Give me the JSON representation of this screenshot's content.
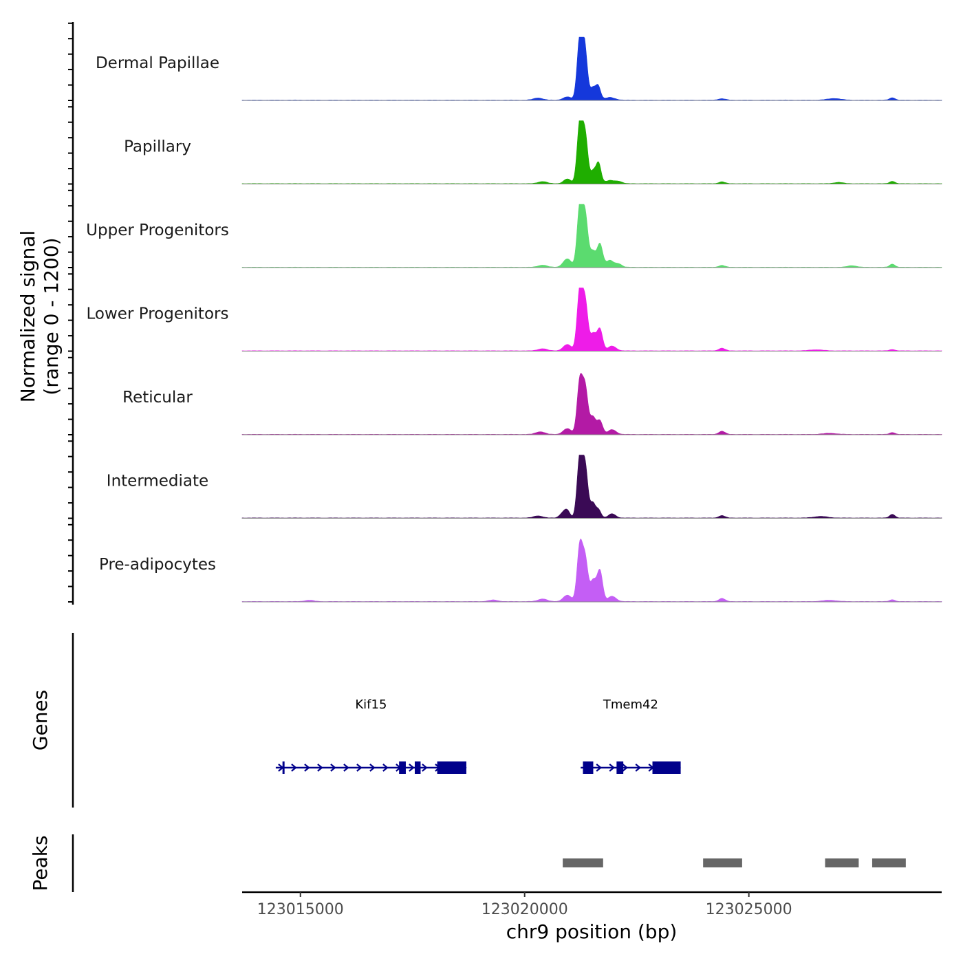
{
  "chart_data": {
    "type": "area",
    "title": "",
    "region": {
      "chromosome": "chr9",
      "start": 123013700,
      "end": 123029300
    },
    "xlabel": "chr9 position (bp)",
    "ylabel_line1": "Normalized signal",
    "ylabel_line2": "(range 0 - 1200)",
    "ylim": [
      0,
      1200
    ],
    "x_ticks": [
      {
        "value": 123015000,
        "label": "123015000"
      },
      {
        "value": 123020000,
        "label": "123020000"
      },
      {
        "value": 123025000,
        "label": "123025000"
      }
    ],
    "tracks": [
      {
        "name": "Dermal Papillae",
        "color": "#1538DB",
        "peaks": [
          {
            "x": 123021230,
            "y": 1150,
            "w": 60
          },
          {
            "x": 123021340,
            "y": 950,
            "w": 60
          },
          {
            "x": 123021520,
            "y": 220,
            "w": 60
          },
          {
            "x": 123021640,
            "y": 260,
            "w": 55
          },
          {
            "x": 123020950,
            "y": 60,
            "w": 90
          },
          {
            "x": 123020300,
            "y": 40,
            "w": 100
          },
          {
            "x": 123021900,
            "y": 50,
            "w": 110
          },
          {
            "x": 123024400,
            "y": 25,
            "w": 80
          },
          {
            "x": 123026900,
            "y": 30,
            "w": 140
          },
          {
            "x": 123028200,
            "y": 45,
            "w": 60
          }
        ]
      },
      {
        "name": "Papillary",
        "color": "#1FAE00",
        "peaks": [
          {
            "x": 123021230,
            "y": 1150,
            "w": 60
          },
          {
            "x": 123021350,
            "y": 900,
            "w": 60
          },
          {
            "x": 123021530,
            "y": 230,
            "w": 60
          },
          {
            "x": 123021650,
            "y": 380,
            "w": 55
          },
          {
            "x": 123020950,
            "y": 90,
            "w": 80
          },
          {
            "x": 123020400,
            "y": 40,
            "w": 100
          },
          {
            "x": 123021900,
            "y": 60,
            "w": 100
          },
          {
            "x": 123022100,
            "y": 40,
            "w": 80
          },
          {
            "x": 123024400,
            "y": 35,
            "w": 70
          },
          {
            "x": 123027000,
            "y": 25,
            "w": 100
          },
          {
            "x": 123028200,
            "y": 45,
            "w": 60
          }
        ]
      },
      {
        "name": "Upper Progenitors",
        "color": "#5BDB6F",
        "peaks": [
          {
            "x": 123021230,
            "y": 1150,
            "w": 60
          },
          {
            "x": 123021350,
            "y": 950,
            "w": 60
          },
          {
            "x": 123021520,
            "y": 300,
            "w": 70
          },
          {
            "x": 123021680,
            "y": 430,
            "w": 60
          },
          {
            "x": 123020950,
            "y": 160,
            "w": 90
          },
          {
            "x": 123021900,
            "y": 130,
            "w": 90
          },
          {
            "x": 123022100,
            "y": 60,
            "w": 70
          },
          {
            "x": 123020400,
            "y": 40,
            "w": 100
          },
          {
            "x": 123024400,
            "y": 35,
            "w": 70
          },
          {
            "x": 123027300,
            "y": 30,
            "w": 100
          },
          {
            "x": 123028200,
            "y": 60,
            "w": 60
          }
        ]
      },
      {
        "name": "Lower Progenitors",
        "color": "#EE1CE8",
        "peaks": [
          {
            "x": 123021230,
            "y": 1150,
            "w": 60
          },
          {
            "x": 123021350,
            "y": 900,
            "w": 60
          },
          {
            "x": 123021530,
            "y": 320,
            "w": 70
          },
          {
            "x": 123021680,
            "y": 400,
            "w": 60
          },
          {
            "x": 123020950,
            "y": 120,
            "w": 90
          },
          {
            "x": 123021950,
            "y": 90,
            "w": 90
          },
          {
            "x": 123020400,
            "y": 40,
            "w": 100
          },
          {
            "x": 123024400,
            "y": 50,
            "w": 70
          },
          {
            "x": 123026500,
            "y": 20,
            "w": 150
          },
          {
            "x": 123028200,
            "y": 25,
            "w": 60
          }
        ]
      },
      {
        "name": "Reticular",
        "color": "#B31AA5",
        "peaks": [
          {
            "x": 123021230,
            "y": 1000,
            "w": 60
          },
          {
            "x": 123021350,
            "y": 850,
            "w": 60
          },
          {
            "x": 123021520,
            "y": 330,
            "w": 70
          },
          {
            "x": 123021680,
            "y": 250,
            "w": 60
          },
          {
            "x": 123020950,
            "y": 110,
            "w": 90
          },
          {
            "x": 123021950,
            "y": 90,
            "w": 90
          },
          {
            "x": 123020350,
            "y": 50,
            "w": 100
          },
          {
            "x": 123024400,
            "y": 60,
            "w": 70
          },
          {
            "x": 123026800,
            "y": 20,
            "w": 150
          },
          {
            "x": 123028200,
            "y": 35,
            "w": 60
          }
        ]
      },
      {
        "name": "Intermediate",
        "color": "#3A0A55",
        "peaks": [
          {
            "x": 123021230,
            "y": 1150,
            "w": 60
          },
          {
            "x": 123021350,
            "y": 950,
            "w": 60
          },
          {
            "x": 123021520,
            "y": 280,
            "w": 60
          },
          {
            "x": 123021650,
            "y": 150,
            "w": 55
          },
          {
            "x": 123020850,
            "y": 90,
            "w": 70
          },
          {
            "x": 123020950,
            "y": 130,
            "w": 60
          },
          {
            "x": 123021950,
            "y": 80,
            "w": 80
          },
          {
            "x": 123020300,
            "y": 40,
            "w": 100
          },
          {
            "x": 123024400,
            "y": 45,
            "w": 70
          },
          {
            "x": 123026600,
            "y": 30,
            "w": 150
          },
          {
            "x": 123028200,
            "y": 70,
            "w": 60
          }
        ]
      },
      {
        "name": "Pre-adipocytes",
        "color": "#C45EF5",
        "peaks": [
          {
            "x": 123021230,
            "y": 1050,
            "w": 60
          },
          {
            "x": 123021350,
            "y": 780,
            "w": 60
          },
          {
            "x": 123021530,
            "y": 400,
            "w": 70
          },
          {
            "x": 123021680,
            "y": 570,
            "w": 60
          },
          {
            "x": 123020950,
            "y": 120,
            "w": 90
          },
          {
            "x": 123021950,
            "y": 100,
            "w": 90
          },
          {
            "x": 123020400,
            "y": 50,
            "w": 100
          },
          {
            "x": 123024400,
            "y": 60,
            "w": 70
          },
          {
            "x": 123015200,
            "y": 25,
            "w": 100
          },
          {
            "x": 123019300,
            "y": 30,
            "w": 100
          },
          {
            "x": 123026800,
            "y": 25,
            "w": 150
          },
          {
            "x": 123028200,
            "y": 35,
            "w": 60
          }
        ]
      }
    ],
    "genes_panel": {
      "label": "Genes",
      "color": "#00008B",
      "genes": [
        {
          "name": "Kif15",
          "strand": "+",
          "start": 123014450,
          "end": 123018700,
          "exons": [
            {
              "start": 123014600,
              "end": 123014630
            },
            {
              "start": 123017200,
              "end": 123017350
            },
            {
              "start": 123017550,
              "end": 123017680
            },
            {
              "start": 123018050,
              "end": 123018700
            }
          ]
        },
        {
          "name": "Tmem42",
          "strand": "+",
          "start": 123021250,
          "end": 123023480,
          "exons": [
            {
              "start": 123021300,
              "end": 123021530
            },
            {
              "start": 123022050,
              "end": 123022200
            },
            {
              "start": 123022850,
              "end": 123023480
            }
          ]
        }
      ]
    },
    "peaks_panel": {
      "label": "Peaks",
      "color": "#666666",
      "intervals": [
        {
          "start": 123020850,
          "end": 123021750
        },
        {
          "start": 123023980,
          "end": 123024850
        },
        {
          "start": 123026700,
          "end": 123027450
        },
        {
          "start": 123027750,
          "end": 123028500
        }
      ]
    }
  }
}
